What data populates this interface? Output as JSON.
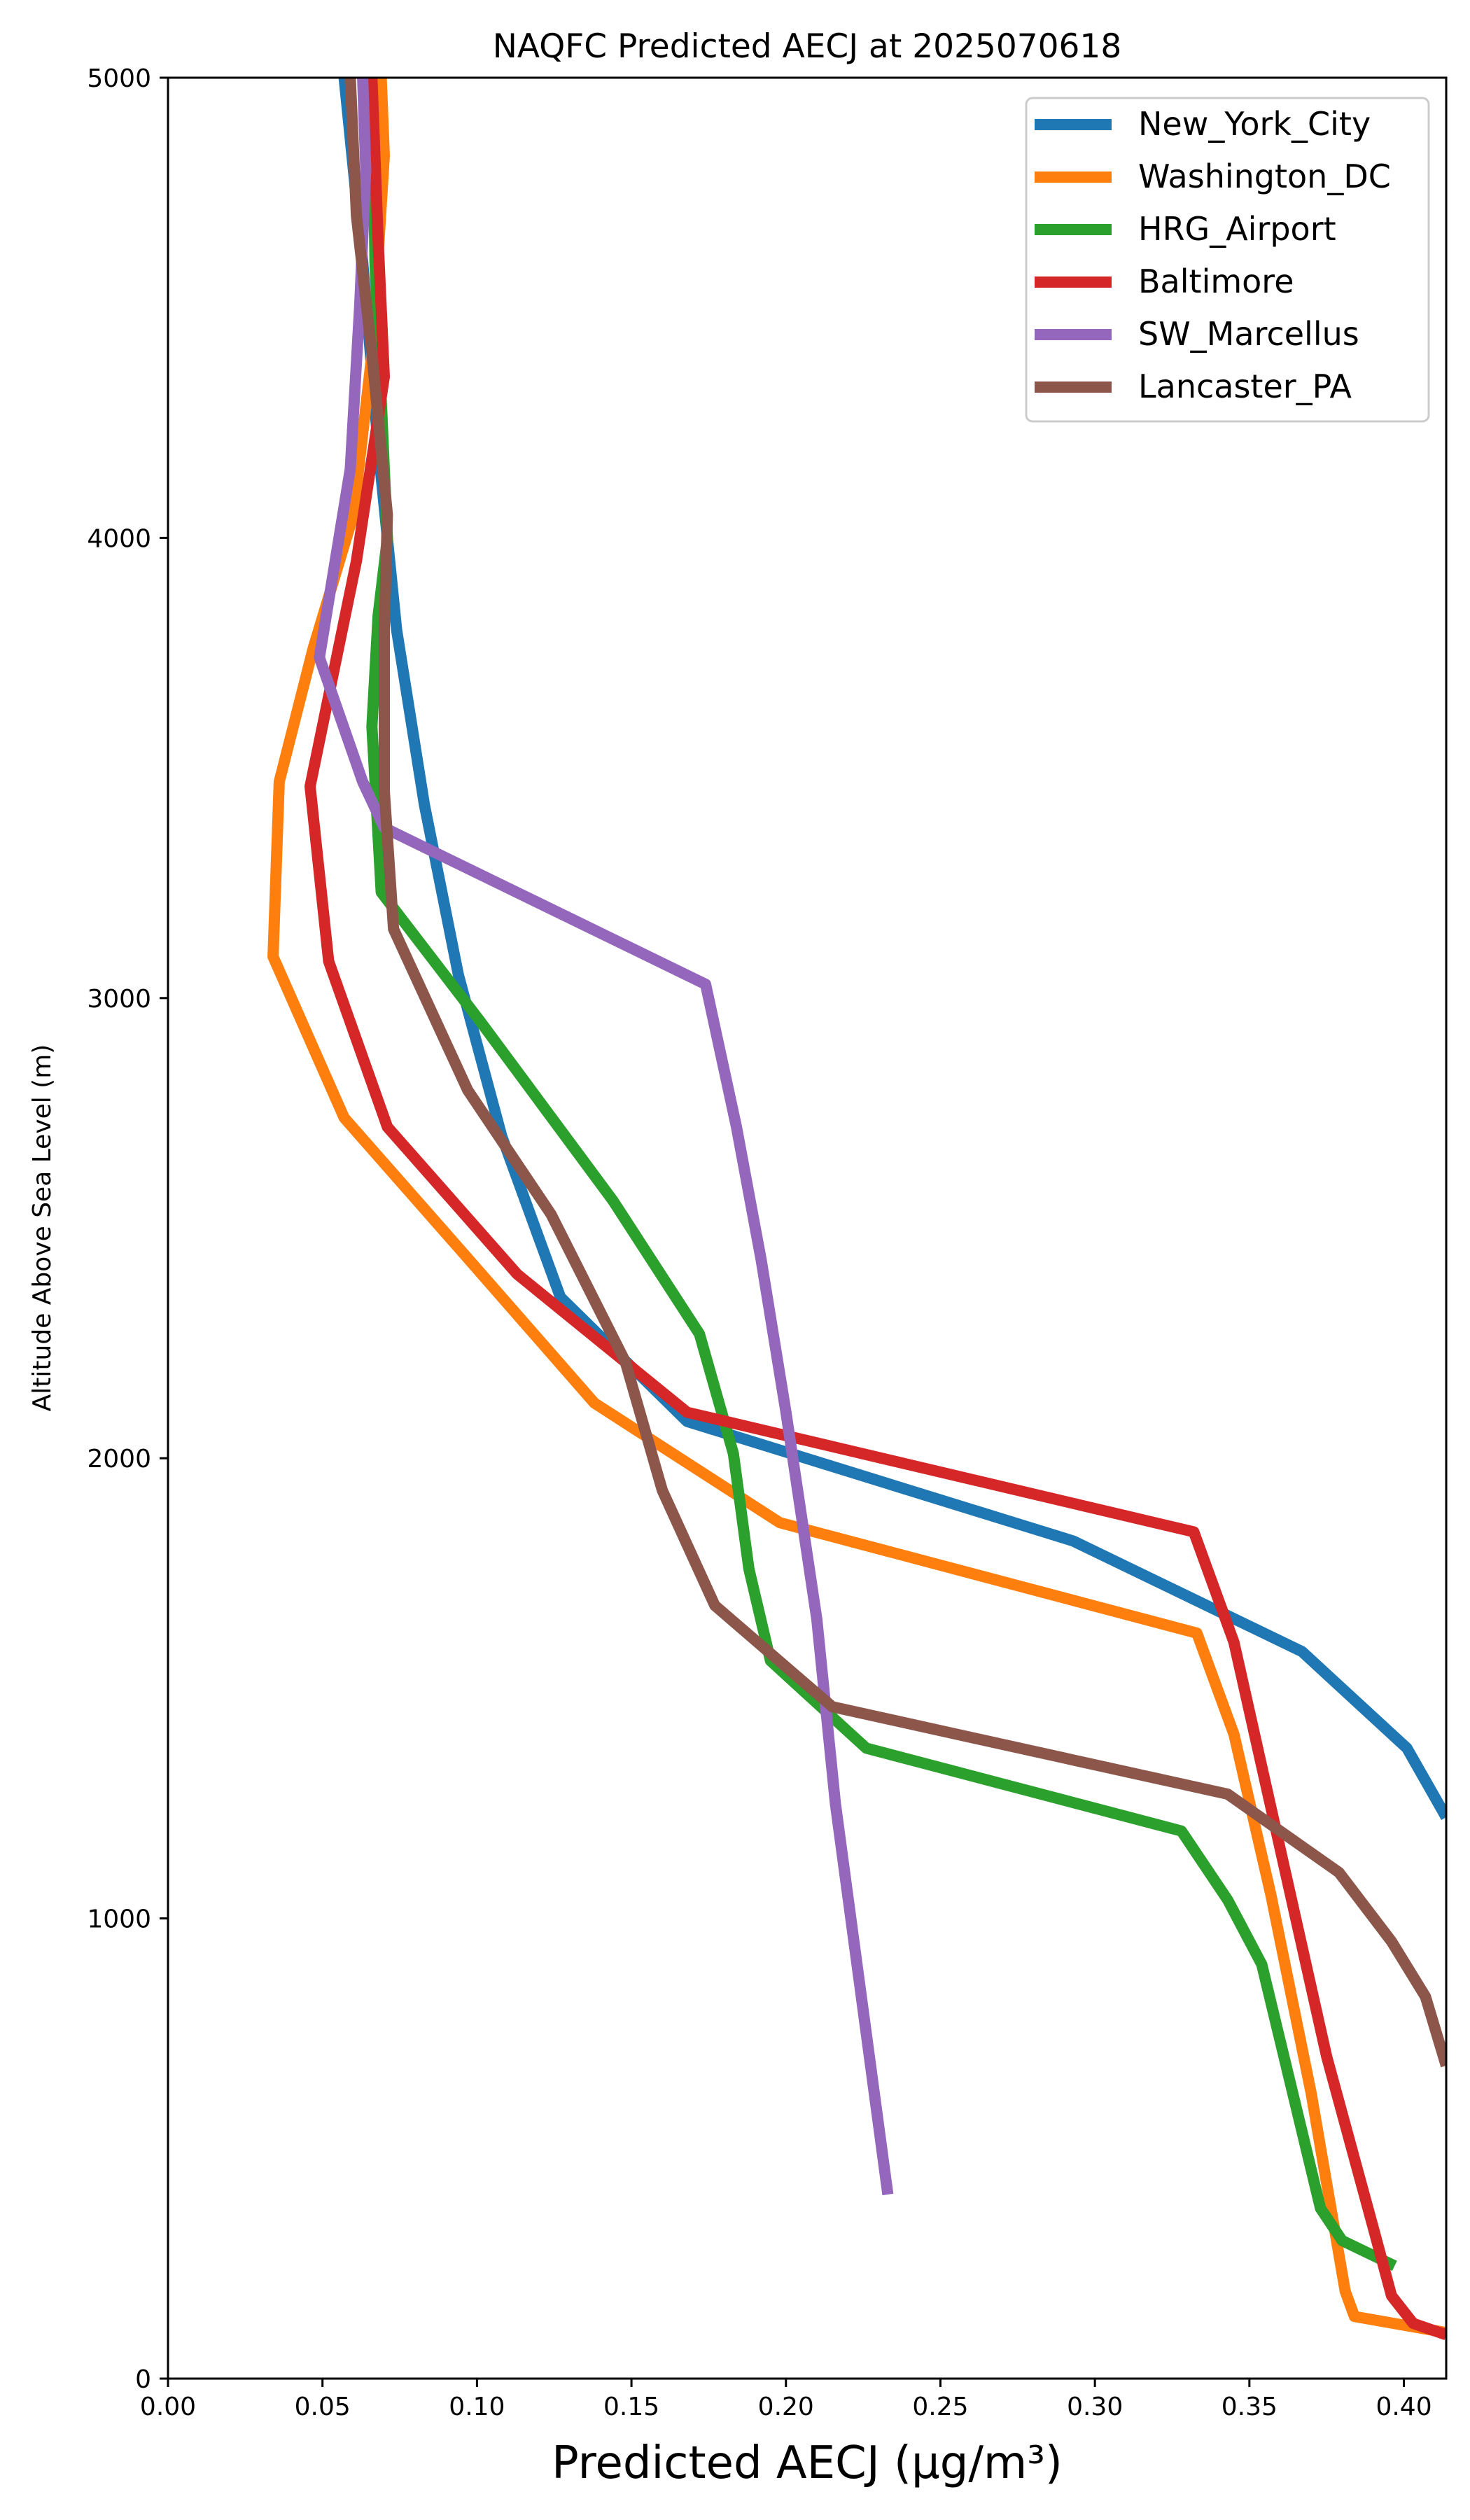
{
  "chart_data": {
    "type": "line",
    "title": "NAQFC Predicted AECJ at 2025070618",
    "xlabel": "Predicted AECJ (μg/m³)",
    "ylabel": "Altitude Above Sea Level (m)",
    "xlim": [
      0.0,
      0.4137
    ],
    "ylim": [
      0,
      5000
    ],
    "x_ticks": [
      "0.00",
      "0.05",
      "0.10",
      "0.15",
      "0.20",
      "0.25",
      "0.30",
      "0.35",
      "0.40"
    ],
    "y_ticks": [
      "0",
      "1000",
      "2000",
      "3000",
      "4000",
      "5000"
    ],
    "grid": false,
    "legend_position": "top-right",
    "series": [
      {
        "name": "New_York_City",
        "color": "#1f77b4",
        "points": [
          [
            0.4137,
            1220
          ],
          [
            0.401,
            1370
          ],
          [
            0.367,
            1580
          ],
          [
            0.293,
            1820
          ],
          [
            0.168,
            2080
          ],
          [
            0.127,
            2350
          ],
          [
            0.108,
            2700
          ],
          [
            0.094,
            3050
          ],
          [
            0.083,
            3420
          ],
          [
            0.074,
            3800
          ],
          [
            0.068,
            4200
          ],
          [
            0.063,
            4600
          ],
          [
            0.057,
            5000
          ]
        ]
      },
      {
        "name": "Washington_DC",
        "color": "#ff7f0e",
        "points": [
          [
            0.4137,
            100
          ],
          [
            0.384,
            135
          ],
          [
            0.381,
            190
          ],
          [
            0.37,
            620
          ],
          [
            0.357,
            1050
          ],
          [
            0.345,
            1400
          ],
          [
            0.333,
            1620
          ],
          [
            0.198,
            1860
          ],
          [
            0.138,
            2120
          ],
          [
            0.095,
            2450
          ],
          [
            0.057,
            2740
          ],
          [
            0.034,
            3090
          ],
          [
            0.036,
            3470
          ],
          [
            0.047,
            3760
          ],
          [
            0.06,
            4050
          ],
          [
            0.066,
            4400
          ],
          [
            0.07,
            4830
          ],
          [
            0.069,
            5000
          ]
        ]
      },
      {
        "name": "HRG_Airport",
        "color": "#2ca02c",
        "points": [
          [
            0.397,
            245
          ],
          [
            0.38,
            300
          ],
          [
            0.373,
            370
          ],
          [
            0.354,
            900
          ],
          [
            0.343,
            1040
          ],
          [
            0.328,
            1190
          ],
          [
            0.226,
            1370
          ],
          [
            0.195,
            1560
          ],
          [
            0.188,
            1760
          ],
          [
            0.183,
            2010
          ],
          [
            0.172,
            2270
          ],
          [
            0.144,
            2560
          ],
          [
            0.101,
            2950
          ],
          [
            0.069,
            3230
          ],
          [
            0.066,
            3590
          ],
          [
            0.068,
            3830
          ],
          [
            0.071,
            4000
          ],
          [
            0.069,
            4300
          ],
          [
            0.067,
            4600
          ],
          [
            0.066,
            5000
          ]
        ]
      },
      {
        "name": "Baltimore",
        "color": "#d62728",
        "points": [
          [
            0.4137,
            95
          ],
          [
            0.403,
            120
          ],
          [
            0.396,
            180
          ],
          [
            0.39,
            330
          ],
          [
            0.375,
            700
          ],
          [
            0.345,
            1600
          ],
          [
            0.332,
            1840
          ],
          [
            0.168,
            2100
          ],
          [
            0.113,
            2400
          ],
          [
            0.071,
            2720
          ],
          [
            0.052,
            3080
          ],
          [
            0.046,
            3460
          ],
          [
            0.061,
            3950
          ],
          [
            0.07,
            4350
          ],
          [
            0.068,
            4650
          ],
          [
            0.066,
            5000
          ]
        ]
      },
      {
        "name": "SW_Marcellus",
        "color": "#9467bd",
        "points": [
          [
            0.233,
            400
          ],
          [
            0.216,
            1250
          ],
          [
            0.21,
            1650
          ],
          [
            0.2,
            2100
          ],
          [
            0.192,
            2430
          ],
          [
            0.184,
            2720
          ],
          [
            0.174,
            3030
          ],
          [
            0.07,
            3370
          ],
          [
            0.063,
            3470
          ],
          [
            0.049,
            3740
          ],
          [
            0.059,
            4150
          ],
          [
            0.062,
            4500
          ],
          [
            0.064,
            4800
          ],
          [
            0.063,
            5000
          ]
        ]
      },
      {
        "name": "Lancaster_PA",
        "color": "#8c564b",
        "points": [
          [
            0.4137,
            680
          ],
          [
            0.407,
            830
          ],
          [
            0.396,
            950
          ],
          [
            0.379,
            1100
          ],
          [
            0.343,
            1270
          ],
          [
            0.215,
            1460
          ],
          [
            0.177,
            1680
          ],
          [
            0.16,
            1930
          ],
          [
            0.148,
            2210
          ],
          [
            0.124,
            2530
          ],
          [
            0.097,
            2800
          ],
          [
            0.073,
            3150
          ],
          [
            0.07,
            3450
          ],
          [
            0.07,
            3800
          ],
          [
            0.071,
            4050
          ],
          [
            0.066,
            4400
          ],
          [
            0.061,
            4700
          ],
          [
            0.059,
            5000
          ]
        ]
      }
    ]
  }
}
